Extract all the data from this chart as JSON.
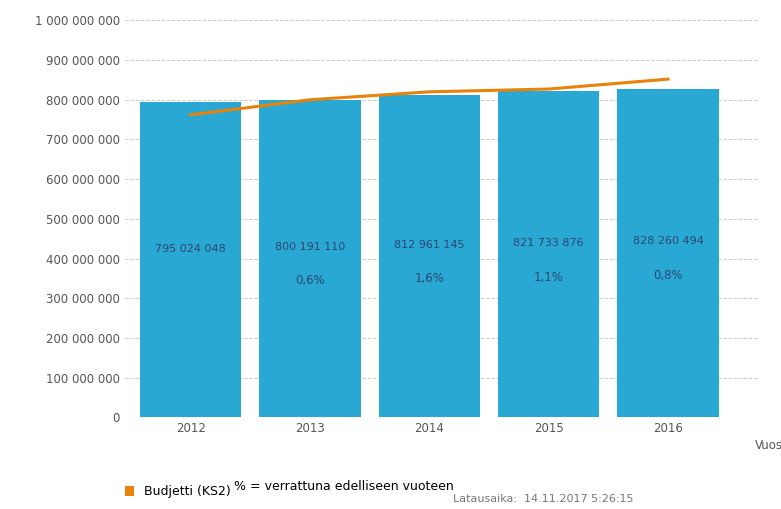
{
  "years": [
    2012,
    2013,
    2014,
    2015,
    2016
  ],
  "bar_values": [
    795024048,
    800191110,
    812961145,
    821733876,
    828260494
  ],
  "bar_labels": [
    "795 024 048",
    "800 191 110",
    "812 961 145",
    "821 733 876",
    "828 260 494"
  ],
  "pct_labels": [
    "",
    "0,6%",
    "1,6%",
    "1,1%",
    "0,8%"
  ],
  "budget_line": [
    762000000,
    800000000,
    820000000,
    827000000,
    852000000
  ],
  "bar_color": "#29a8d4",
  "line_color": "#e8820a",
  "background_color": "#ffffff",
  "grid_color": "#cccccc",
  "text_color": "#2c4770",
  "ylim": [
    0,
    1000000000
  ],
  "yticks": [
    0,
    100000000,
    200000000,
    300000000,
    400000000,
    500000000,
    600000000,
    700000000,
    800000000,
    900000000,
    1000000000
  ],
  "xlabel": "Vuosi",
  "legend_label": "Budjetti (KS2)",
  "pct_legend_label": "% = verrattuna edelliseen vuoteen",
  "footer_text": "Latausaika:  14.11.2017 5:26:15",
  "label_fontsize": 8.0,
  "pct_fontsize": 8.5,
  "axis_fontsize": 8.5,
  "bar_width": 0.85
}
